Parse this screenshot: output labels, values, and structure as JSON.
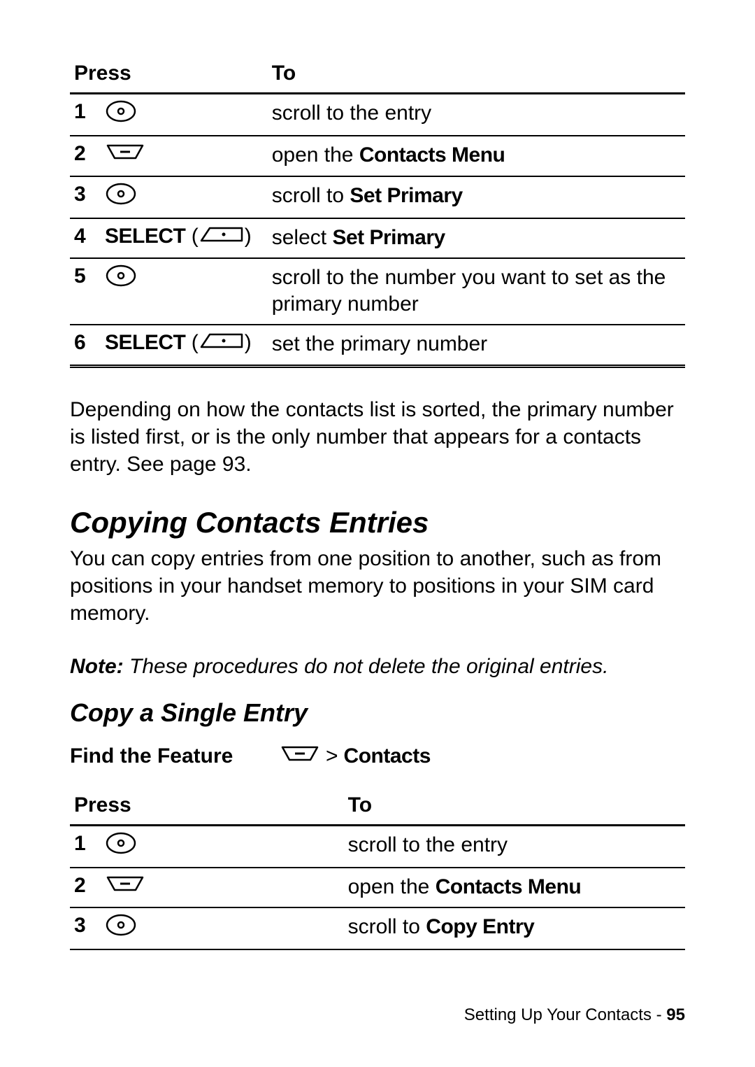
{
  "table1": {
    "headers": {
      "press": "Press",
      "to": "To"
    },
    "rows": [
      {
        "num": "1",
        "press_type": "nav",
        "to_pre": "scroll to the entry",
        "to_bold": ""
      },
      {
        "num": "2",
        "press_type": "menu",
        "to_pre": "open the ",
        "to_bold": "Contacts Menu"
      },
      {
        "num": "3",
        "press_type": "nav",
        "to_pre": "scroll to ",
        "to_bold": "Set Primary"
      },
      {
        "num": "4",
        "press_type": "select",
        "press_label": "SELECT",
        "to_pre": "select ",
        "to_bold": "Set Primary"
      },
      {
        "num": "5",
        "press_type": "nav",
        "to_pre": "scroll to the number you want to set as the primary number",
        "to_bold": ""
      },
      {
        "num": "6",
        "press_type": "select",
        "press_label": "SELECT",
        "to_pre": "set the primary number",
        "to_bold": ""
      }
    ]
  },
  "para1": "Depending on how the contacts list is sorted, the primary number is listed first, or is the only number that appears for a contacts entry. See page 93.",
  "heading1": "Copying Contacts Entries",
  "para2": "You can copy entries from one position to another, such as from positions in your handset memory to positions in your SIM card memory.",
  "note": {
    "label": "Note:",
    "body": " These procedures do not delete the original entries."
  },
  "heading2": "Copy a Single Entry",
  "feature": {
    "label": "Find the Feature",
    "gt": ">",
    "value": "Contacts"
  },
  "table2": {
    "headers": {
      "press": "Press",
      "to": "To"
    },
    "rows": [
      {
        "num": "1",
        "press_type": "nav",
        "to_pre": "scroll to the entry",
        "to_bold": ""
      },
      {
        "num": "2",
        "press_type": "menu",
        "to_pre": "open the ",
        "to_bold": "Contacts Menu"
      },
      {
        "num": "3",
        "press_type": "nav",
        "to_pre": "scroll to ",
        "to_bold": "Copy Entry"
      }
    ]
  },
  "footer": {
    "text": "Setting Up Your Contacts - ",
    "page": "95"
  }
}
